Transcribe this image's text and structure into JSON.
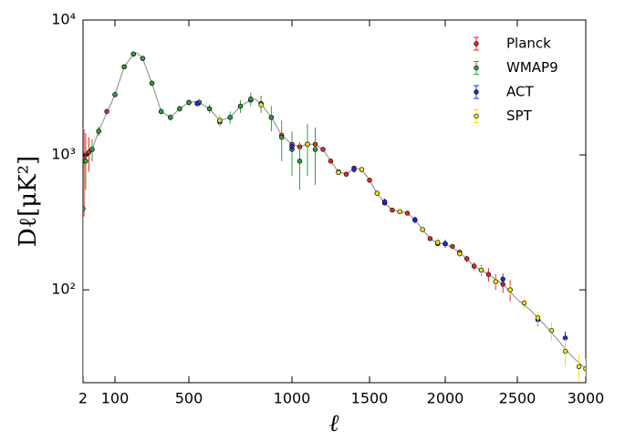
{
  "chart_data": {
    "type": "errorbar",
    "x_label": "ℓ",
    "y_label": "Dℓ[μK²]",
    "xlim": [
      2,
      3000
    ],
    "xticks": [
      2,
      100,
      500,
      1000,
      1500,
      2000,
      2500,
      3000
    ],
    "ylim": [
      20.5,
      10000
    ],
    "yscale": "log",
    "yticks": [
      {
        "value": 100,
        "label": "10²"
      },
      {
        "value": 1000,
        "label": "10³"
      },
      {
        "value": 10000,
        "label": "10⁴"
      }
    ],
    "legend": "upper right",
    "model": {
      "color": "#999999",
      "x": [
        2,
        10,
        30,
        50,
        100,
        150,
        200,
        220,
        250,
        300,
        350,
        400,
        450,
        500,
        540,
        600,
        650,
        700,
        750,
        800,
        820,
        850,
        900,
        950,
        1000,
        1050,
        1100,
        1150,
        1200,
        1250,
        1300,
        1350,
        1400,
        1450,
        1500,
        1550,
        1600,
        1650,
        1700,
        1750,
        1800,
        1850,
        1900,
        1950,
        2000,
        2100,
        2200,
        2300,
        2400,
        2500,
        2600,
        2700,
        2800,
        2900,
        3000
      ],
      "values": [
        1000,
        1000,
        1100,
        1500,
        2800,
        4500,
        5600,
        5700,
        5200,
        3400,
        2100,
        1900,
        2200,
        2450,
        2500,
        2200,
        1800,
        1900,
        2300,
        2550,
        2600,
        2400,
        1900,
        1400,
        1200,
        1150,
        1200,
        1200,
        1100,
        900,
        750,
        720,
        800,
        780,
        650,
        520,
        440,
        390,
        380,
        370,
        330,
        280,
        240,
        220,
        220,
        190,
        150,
        130,
        110,
        85,
        70,
        55,
        42,
        32,
        26
      ]
    },
    "series": [
      {
        "name": "Planck",
        "color": "#e8261f",
        "x": [
          2,
          5,
          10,
          20,
          30,
          50,
          75,
          100,
          150,
          200,
          250,
          300,
          350,
          400,
          450,
          500,
          550,
          600,
          650,
          700,
          750,
          800,
          850,
          900,
          950,
          1000,
          1050,
          1100,
          1150,
          1200,
          1250,
          1300,
          1350,
          1400,
          1450,
          1500,
          1550,
          1600,
          1650,
          1700,
          1750,
          1800,
          1850,
          1900,
          1950,
          2000,
          2050,
          2100,
          2150,
          2200,
          2250,
          2300,
          2350,
          2400,
          2450
        ],
        "values": [
          900,
          950,
          1000,
          1050,
          1100,
          1500,
          2100,
          2800,
          4500,
          5600,
          5200,
          3400,
          2100,
          1900,
          2200,
          2450,
          2450,
          2200,
          1800,
          1900,
          2300,
          2550,
          2400,
          1900,
          1400,
          1200,
          1150,
          1200,
          1200,
          1100,
          900,
          750,
          720,
          800,
          780,
          650,
          520,
          440,
          390,
          380,
          370,
          330,
          280,
          240,
          220,
          220,
          210,
          190,
          170,
          150,
          140,
          130,
          115,
          110,
          100
        ],
        "errors": [
          700,
          600,
          450,
          300,
          200,
          120,
          90,
          60,
          60,
          60,
          50,
          40,
          30,
          25,
          25,
          25,
          25,
          25,
          20,
          20,
          25,
          25,
          25,
          20,
          15,
          15,
          15,
          15,
          15,
          15,
          12,
          10,
          10,
          10,
          10,
          8,
          7,
          6,
          6,
          6,
          6,
          6,
          6,
          6,
          6,
          7,
          8,
          8,
          9,
          10,
          12,
          15,
          15,
          15,
          18
        ]
      },
      {
        "name": "WMAP9",
        "color": "#2ea043",
        "x": [
          2,
          10,
          30,
          50,
          100,
          150,
          200,
          250,
          300,
          350,
          400,
          450,
          500,
          550,
          600,
          650,
          700,
          750,
          800,
          850,
          900,
          950,
          1000,
          1050,
          1100,
          1150
        ],
        "values": [
          400,
          900,
          1100,
          1500,
          2800,
          4500,
          5600,
          5200,
          3400,
          2100,
          1900,
          2200,
          2450,
          2450,
          2200,
          1800,
          1900,
          2300,
          2600,
          2400,
          1900,
          1350,
          1100,
          900,
          1200,
          1100
        ],
        "errors": [
          380,
          300,
          150,
          100,
          100,
          120,
          150,
          150,
          120,
          100,
          100,
          110,
          130,
          150,
          160,
          170,
          200,
          250,
          300,
          350,
          400,
          450,
          400,
          350,
          500,
          500
        ]
      },
      {
        "name": "ACT",
        "color": "#1f2bd6",
        "x": [
          540,
          650,
          1000,
          1400,
          1600,
          1800,
          2000,
          2250,
          2400,
          2650,
          2850
        ],
        "values": [
          2400,
          1750,
          1150,
          780,
          450,
          330,
          220,
          140,
          120,
          60,
          44
        ],
        "errors": [
          100,
          100,
          80,
          40,
          25,
          20,
          15,
          12,
          12,
          6,
          5
        ]
      },
      {
        "name": "SPT",
        "color": "#f2e11b",
        "x": [
          650,
          850,
          1100,
          1300,
          1450,
          1550,
          1700,
          1850,
          1950,
          2100,
          2250,
          2350,
          2450,
          2550,
          2650,
          2750,
          2850,
          2950,
          3000
        ],
        "values": [
          1800,
          2350,
          1200,
          740,
          780,
          520,
          380,
          280,
          225,
          185,
          140,
          115,
          100,
          80,
          62,
          50,
          35,
          27,
          26
        ],
        "errors": [
          150,
          100,
          50,
          30,
          30,
          20,
          15,
          12,
          10,
          9,
          10,
          8,
          8,
          8,
          7,
          8,
          8,
          6,
          5
        ]
      }
    ]
  }
}
